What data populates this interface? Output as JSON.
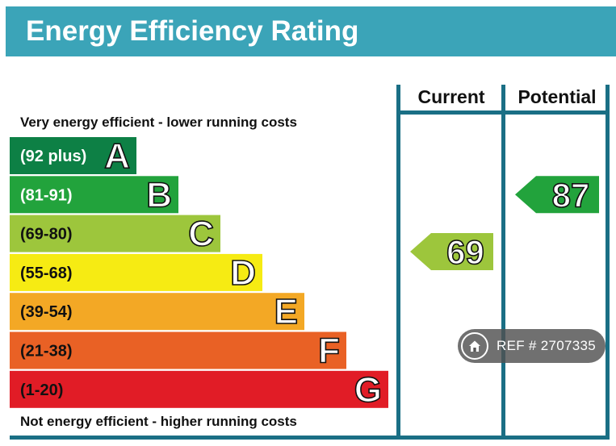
{
  "title": "Energy Efficiency Rating",
  "columns": {
    "current": "Current",
    "potential": "Potential"
  },
  "captions": {
    "top": "Very energy efficient - lower running costs",
    "bottom": "Not energy efficient - higher running costs"
  },
  "chart_data": {
    "type": "bar",
    "title": "Energy Efficiency Rating",
    "bands": [
      {
        "letter": "A",
        "range": "(92 plus)",
        "color": "#0d8045"
      },
      {
        "letter": "B",
        "range": "(81-91)",
        "color": "#22a33c"
      },
      {
        "letter": "C",
        "range": "(69-80)",
        "color": "#9dc63c"
      },
      {
        "letter": "D",
        "range": "(55-68)",
        "color": "#f6eb13"
      },
      {
        "letter": "E",
        "range": "(39-54)",
        "color": "#f3a825"
      },
      {
        "letter": "F",
        "range": "(21-38)",
        "color": "#e96125"
      },
      {
        "letter": "G",
        "range": "(1-20)",
        "color": "#e11c26"
      }
    ],
    "current": {
      "value": 69,
      "band": "C",
      "color": "#9dc63c"
    },
    "potential": {
      "value": 87,
      "band": "B",
      "color": "#22a33c"
    }
  },
  "colors": {
    "header": "#3ba4b8",
    "frame": "#1a6f85"
  },
  "badge": {
    "icon": "home-icon",
    "text": "REF # 2707335"
  }
}
